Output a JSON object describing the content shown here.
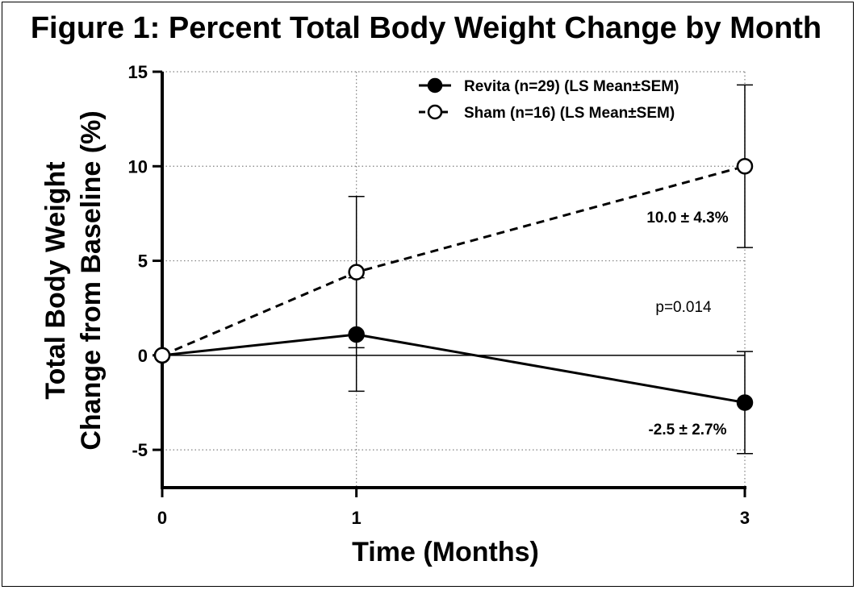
{
  "chart_data": {
    "type": "line",
    "title": "Figure 1: Percent Total Body Weight Change by Month",
    "xlabel": "Time (Months)",
    "ylabel_line1": "Total Body Weight",
    "ylabel_line2": "Change from Baseline (%)",
    "x": [
      0,
      1,
      3
    ],
    "x_tick_labels": [
      "0",
      "1",
      "3"
    ],
    "ylim": [
      -7,
      15
    ],
    "y_ticks": [
      15,
      10,
      5,
      0,
      -5
    ],
    "y_tick_labels": [
      "15",
      "10",
      "5",
      "0",
      "-5"
    ],
    "grid": true,
    "legend_position": "top-right",
    "series": [
      {
        "name": "Revita (n=29) (LS Mean±SEM)",
        "marker": "filled-circle",
        "line_style": "solid",
        "values": [
          0,
          1.1,
          -2.5
        ],
        "error": [
          0,
          3.0,
          2.7
        ]
      },
      {
        "name": "Sham (n=16) (LS Mean±SEM)",
        "marker": "open-circle",
        "line_style": "dashed",
        "values": [
          0,
          4.4,
          10.0
        ],
        "error": [
          0,
          4.0,
          4.3
        ]
      }
    ],
    "annotations": {
      "sham_final": "10.0 ± 4.3%",
      "p_value": "p=0.014",
      "revita_final": "-2.5 ± 2.7%"
    },
    "colors": {
      "line": "#000000",
      "grid": "#808080",
      "background": "#ffffff"
    }
  }
}
